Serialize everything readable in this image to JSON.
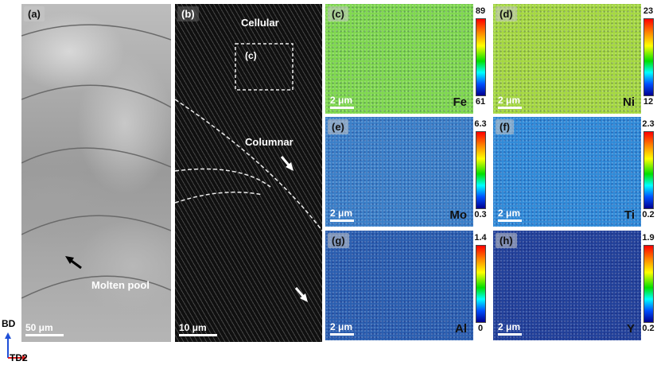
{
  "panel_a": {
    "label": "(a)",
    "scale": "50 μm",
    "annotation": "Molten pool"
  },
  "panel_b": {
    "label": "(b)",
    "scale": "10 μm",
    "cellular": "Cellular",
    "columnar": "Columnar",
    "box_label": "(c)"
  },
  "maps": [
    {
      "label": "(c)",
      "element": "Fe",
      "max": "89",
      "min": "61",
      "scale": "2 μm",
      "base": "#7fd84e"
    },
    {
      "label": "(d)",
      "element": "Ni",
      "max": "23",
      "min": "12",
      "scale": "2 μm",
      "base": "#a5d840"
    },
    {
      "label": "(e)",
      "element": "Mo",
      "max": "6.3",
      "min": "0.3",
      "scale": "2 μm",
      "base": "#3a7fc8"
    },
    {
      "label": "(f)",
      "element": "Ti",
      "max": "2.3",
      "min": "0.2",
      "scale": "2 μm",
      "base": "#2f8ad8"
    },
    {
      "label": "(g)",
      "element": "Al",
      "max": "1.4",
      "min": "0",
      "scale": "2 μm",
      "base": "#2a5eb0"
    },
    {
      "label": "(h)",
      "element": "Y",
      "max": "1.9",
      "min": "0.2",
      "scale": "2 μm",
      "base": "#21409a"
    }
  ],
  "axes": {
    "bd": "BD",
    "td": "TD2"
  }
}
